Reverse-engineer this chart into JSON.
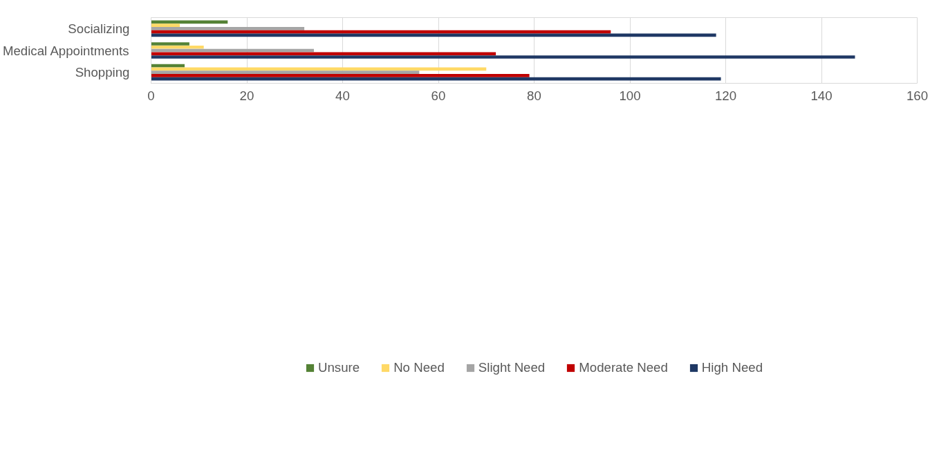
{
  "chart_data": {
    "type": "bar",
    "orientation": "horizontal",
    "categories": [
      "Socializing",
      "Medical Appointments",
      "Shopping"
    ],
    "series": [
      {
        "name": "Unsure",
        "color": "#548235",
        "values": [
          16,
          8,
          7
        ]
      },
      {
        "name": "No Need",
        "color": "#ffd966",
        "values": [
          6,
          11,
          70
        ]
      },
      {
        "name": "Slight Need",
        "color": "#a5a5a5",
        "values": [
          32,
          34,
          56
        ]
      },
      {
        "name": "Moderate Need",
        "color": "#c00000",
        "values": [
          96,
          72,
          79
        ]
      },
      {
        "name": "High Need",
        "color": "#1f3864",
        "values": [
          118,
          147,
          119
        ]
      }
    ],
    "xlim": [
      0,
      160
    ],
    "xticks": [
      0,
      20,
      40,
      60,
      80,
      100,
      120,
      140,
      160
    ],
    "grid": "x",
    "legend": "bottom"
  }
}
